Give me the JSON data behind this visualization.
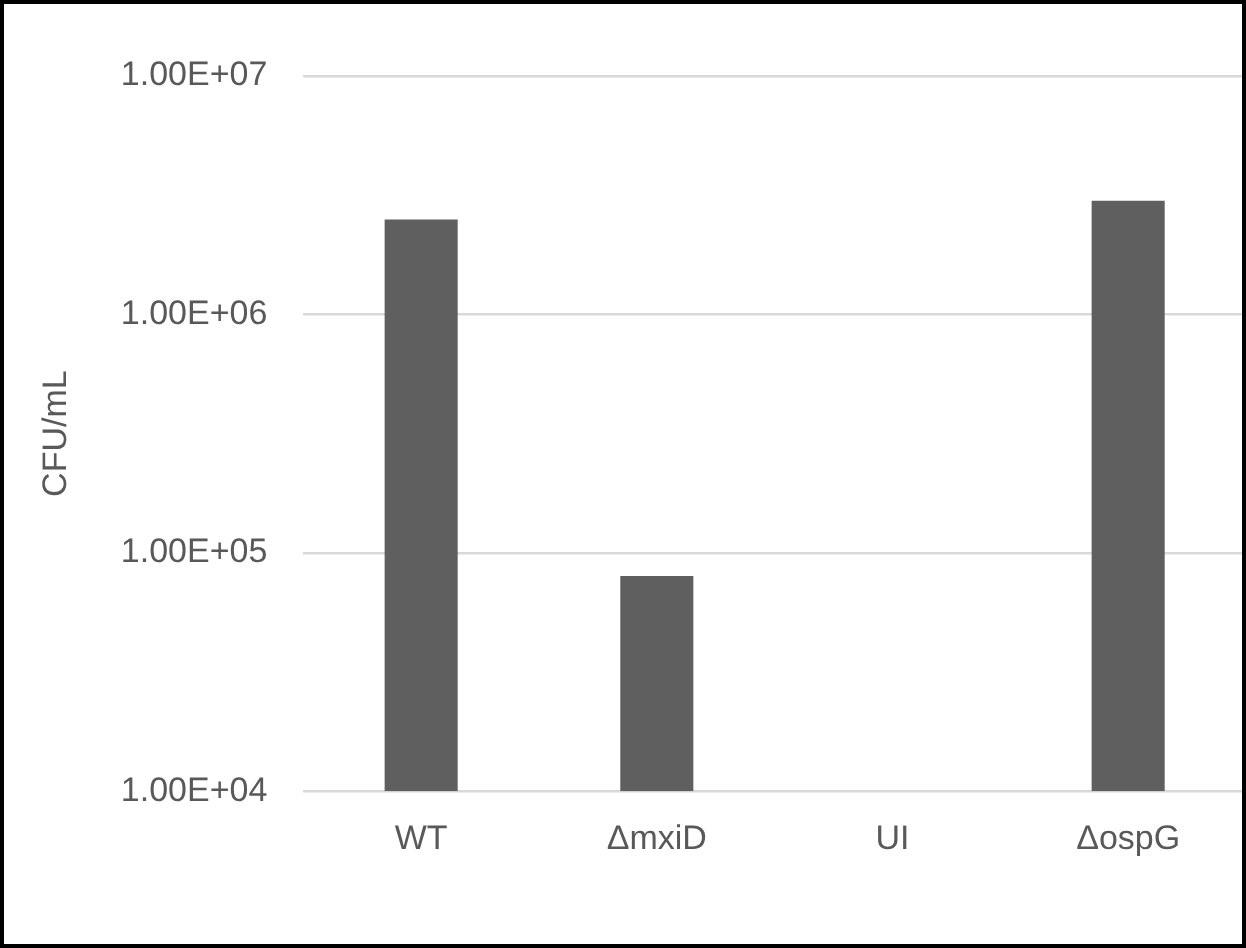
{
  "chart_data": {
    "type": "bar",
    "ylabel": "CFU/mL",
    "categories": [
      "WT",
      "ΔmxiD",
      "UI",
      "ΔospG"
    ],
    "values": [
      2500000,
      80000,
      null,
      3000000
    ],
    "color": "#5f5f5f",
    "log": "y",
    "ylim": [
      10000,
      10000000
    ],
    "yticks": [
      {
        "value": 10000,
        "label": "1.00E+04"
      },
      {
        "value": 100000,
        "label": "1.00E+05"
      },
      {
        "value": 1000000,
        "label": "1.00E+06"
      },
      {
        "value": 10000000,
        "label": "1.00E+07"
      }
    ],
    "grid": "y",
    "legend": false
  }
}
